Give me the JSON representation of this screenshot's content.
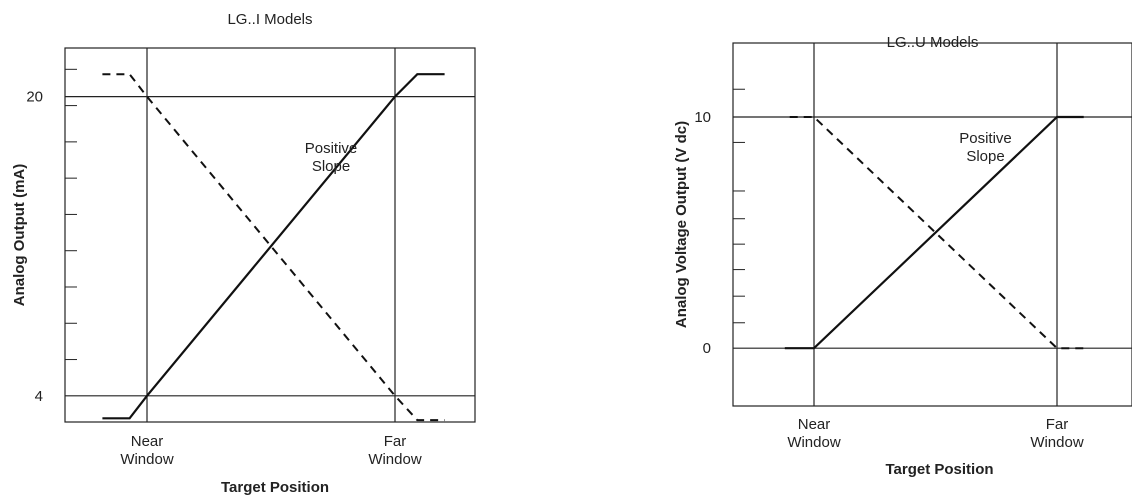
{
  "chart_data": [
    {
      "type": "line",
      "title": "LG..I Models",
      "xlabel": "Target Position",
      "ylabel": "Analog Output (mA)",
      "x_ticks": [
        "Near\nWindow",
        "Far\nWindow"
      ],
      "y_ticks": [
        4,
        20
      ],
      "ylim": [
        2.6,
        22.6
      ],
      "minor_y_ticks": [
        5.94,
        7.88,
        9.82,
        11.76,
        13.7,
        15.64,
        17.58,
        19.52,
        21.46
      ],
      "annotation": "Positive\nSlope",
      "series": [
        {
          "style": "solid",
          "x": [
            -0.18,
            -0.07,
            0,
            1,
            1.09,
            1.2
          ],
          "y": [
            2.8,
            2.8,
            4,
            20,
            21.2,
            21.2
          ]
        },
        {
          "style": "dashed",
          "x": [
            -0.18,
            -0.07,
            0,
            1,
            1.09,
            1.2
          ],
          "y": [
            21.2,
            21.2,
            20,
            4,
            2.7,
            2.7
          ]
        }
      ]
    },
    {
      "type": "line",
      "title": "LG..U Models",
      "xlabel": "Target Position",
      "ylabel": "Analog Voltage Output (V dc)",
      "x_ticks": [
        "Near\nWindow",
        "Far\nWindow"
      ],
      "y_ticks": [
        0,
        10
      ],
      "ylim": [
        -2.5,
        13.2
      ],
      "minor_y_ticks": [
        1.1,
        2.25,
        3.4,
        4.5,
        5.6,
        6.8,
        8.9,
        11.2
      ],
      "annotation": "Positive\nSlope",
      "series": [
        {
          "style": "solid",
          "x": [
            -0.12,
            0,
            1,
            1.11
          ],
          "y": [
            0,
            0,
            10,
            10
          ]
        },
        {
          "style": "dashed",
          "x": [
            -0.1,
            0,
            1,
            1.11
          ],
          "y": [
            10,
            10,
            0,
            0
          ]
        }
      ]
    }
  ]
}
